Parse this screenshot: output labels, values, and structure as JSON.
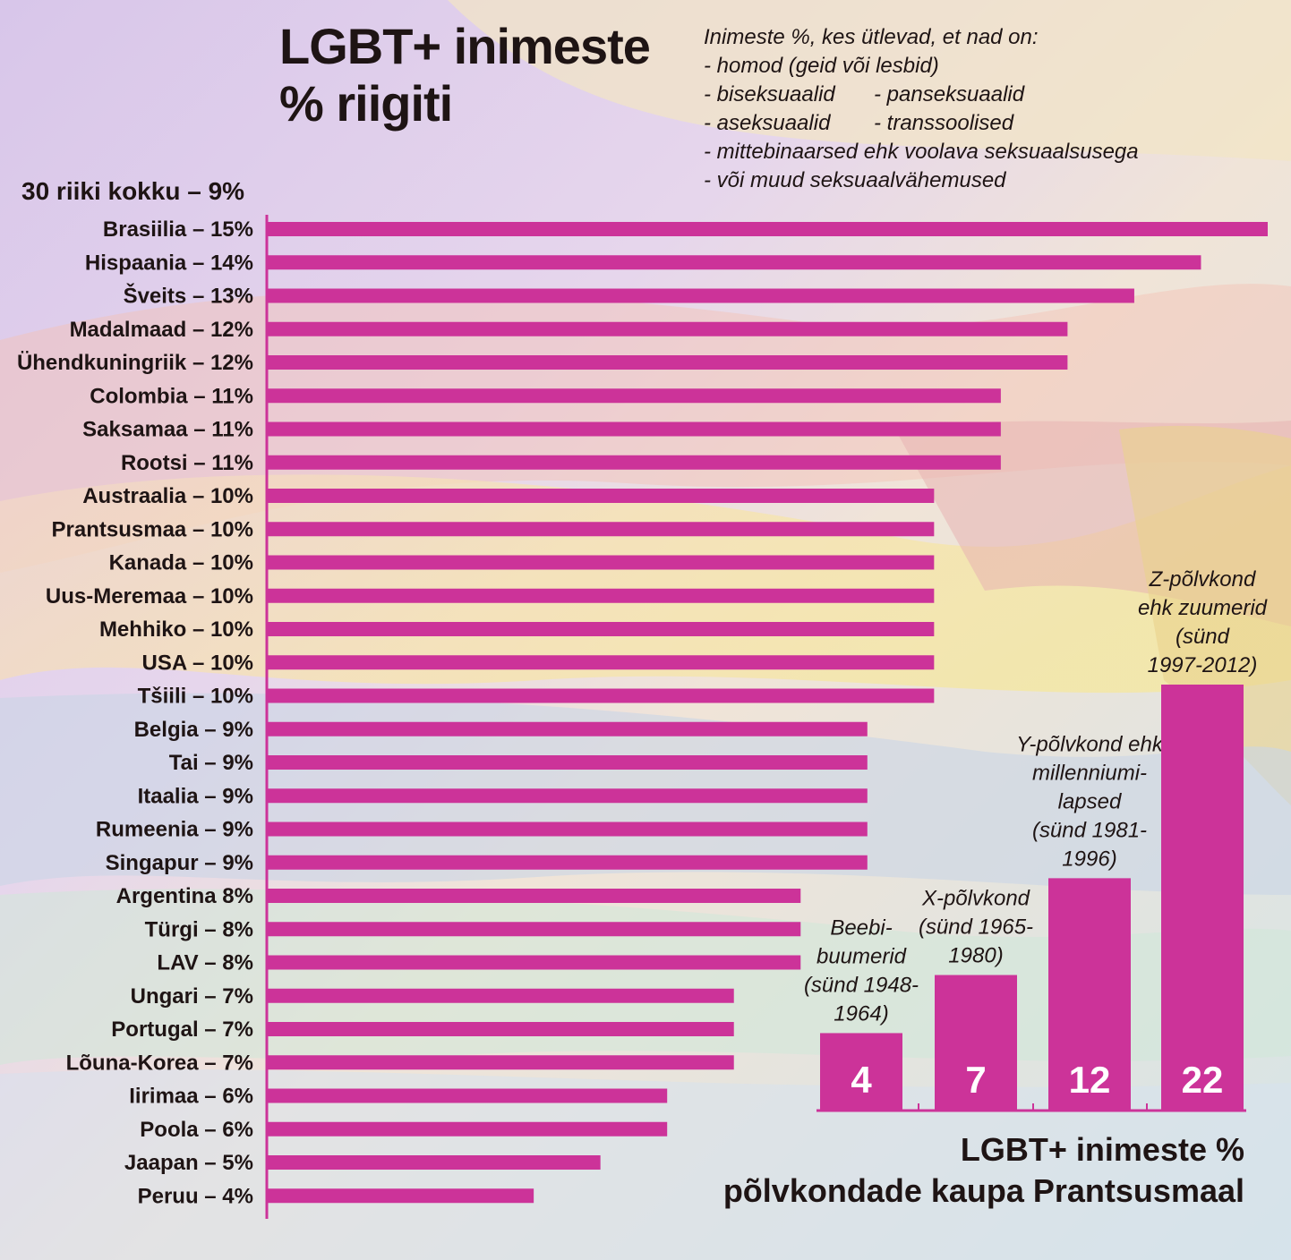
{
  "title": "LGBT+ inimeste % riigiti",
  "definition": {
    "intro": "Inimeste %, kes ütlevad, et nad on:",
    "items": [
      [
        "- homod (geid või lesbid)",
        ""
      ],
      [
        "- biseksuaalid",
        "- panseksuaalid"
      ],
      [
        "- aseksuaalid",
        "- transsoolised"
      ],
      [
        "- mittebinaarsed ehk voolava seksuaalsusega",
        ""
      ],
      [
        "- või muud seksuaalvähemused",
        ""
      ]
    ]
  },
  "total_label": "30 riiki kokku – 9%",
  "generations_title_line1": "LGBT+ inimeste %",
  "generations_title_line2": "põlvkondade kaupa Prantsusmaal",
  "colors": {
    "bar": "#cc3399"
  },
  "chart_data": [
    {
      "type": "bar",
      "orientation": "horizontal",
      "categories": [
        "Brasiilia",
        "Hispaania",
        "Šveits",
        "Madalmaad",
        "Ühendkuningriik",
        "Colombia",
        "Saksamaa",
        "Rootsi",
        "Austraalia",
        "Prantsusmaa",
        "Kanada",
        "Uus-Meremaa",
        "Mehhiko",
        "USA",
        "Tšiili",
        "Belgia",
        "Tai",
        "Itaalia",
        "Rumeenia",
        "Singapur",
        "Argentina",
        "Türgi",
        "LAV",
        "Ungari",
        "Portugal",
        "Lõuna-Korea",
        "Iirimaa",
        "Poola",
        "Jaapan",
        "Peruu"
      ],
      "tick_labels": [
        "Brasiilia – 15%",
        "Hispaania – 14%",
        "Šveits – 13%",
        "Madalmaad – 12%",
        "Ühendkuningriik – 12%",
        "Colombia – 11%",
        "Saksamaa – 11%",
        "Rootsi – 11%",
        "Austraalia – 10%",
        "Prantsusmaa – 10%",
        "Kanada – 10%",
        "Uus-Meremaa – 10%",
        "Mehhiko – 10%",
        "USA – 10%",
        "Tšiili – 10%",
        "Belgia – 9%",
        "Tai – 9%",
        "Itaalia – 9%",
        "Rumeenia – 9%",
        "Singapur – 9%",
        "Argentina 8%",
        "Türgi – 8%",
        "LAV – 8%",
        "Ungari – 7%",
        "Portugal – 7%",
        "Lõuna-Korea – 7%",
        "Iirimaa – 6%",
        "Poola – 6%",
        "Jaapan – 5%",
        "Peruu – 4%"
      ],
      "values": [
        15,
        14,
        13,
        12,
        12,
        11,
        11,
        11,
        10,
        10,
        10,
        10,
        10,
        10,
        10,
        9,
        9,
        9,
        9,
        9,
        8,
        8,
        8,
        7,
        7,
        7,
        6,
        6,
        5,
        4
      ],
      "xlim": [
        0,
        15
      ],
      "grid": false
    },
    {
      "type": "bar",
      "orientation": "vertical",
      "categories": [
        "Beebi-buumerid (sünd 1948-1964)",
        "X-põlvkond (sünd 1965-1980)",
        "Y-põlvkond ehk millenniumi-lapsed (sünd 1981-1996)",
        "Z-põlvkond ehk zuumerid (sünd 1997-2012)"
      ],
      "category_lines": [
        [
          "Beebi-",
          "buumerid",
          "(sünd 1948-",
          "1964)"
        ],
        [
          "X-põlvkond",
          "(sünd 1965-",
          "1980)"
        ],
        [
          "Y-põlvkond ehk",
          "millenniumi-",
          "lapsed",
          "(sünd 1981-",
          "1996)"
        ],
        [
          "Z-põlvkond",
          "ehk zuumerid",
          "(sünd",
          "1997-2012)"
        ]
      ],
      "values": [
        4,
        7,
        12,
        22
      ],
      "ylim": [
        0,
        22
      ],
      "grid": false
    }
  ]
}
